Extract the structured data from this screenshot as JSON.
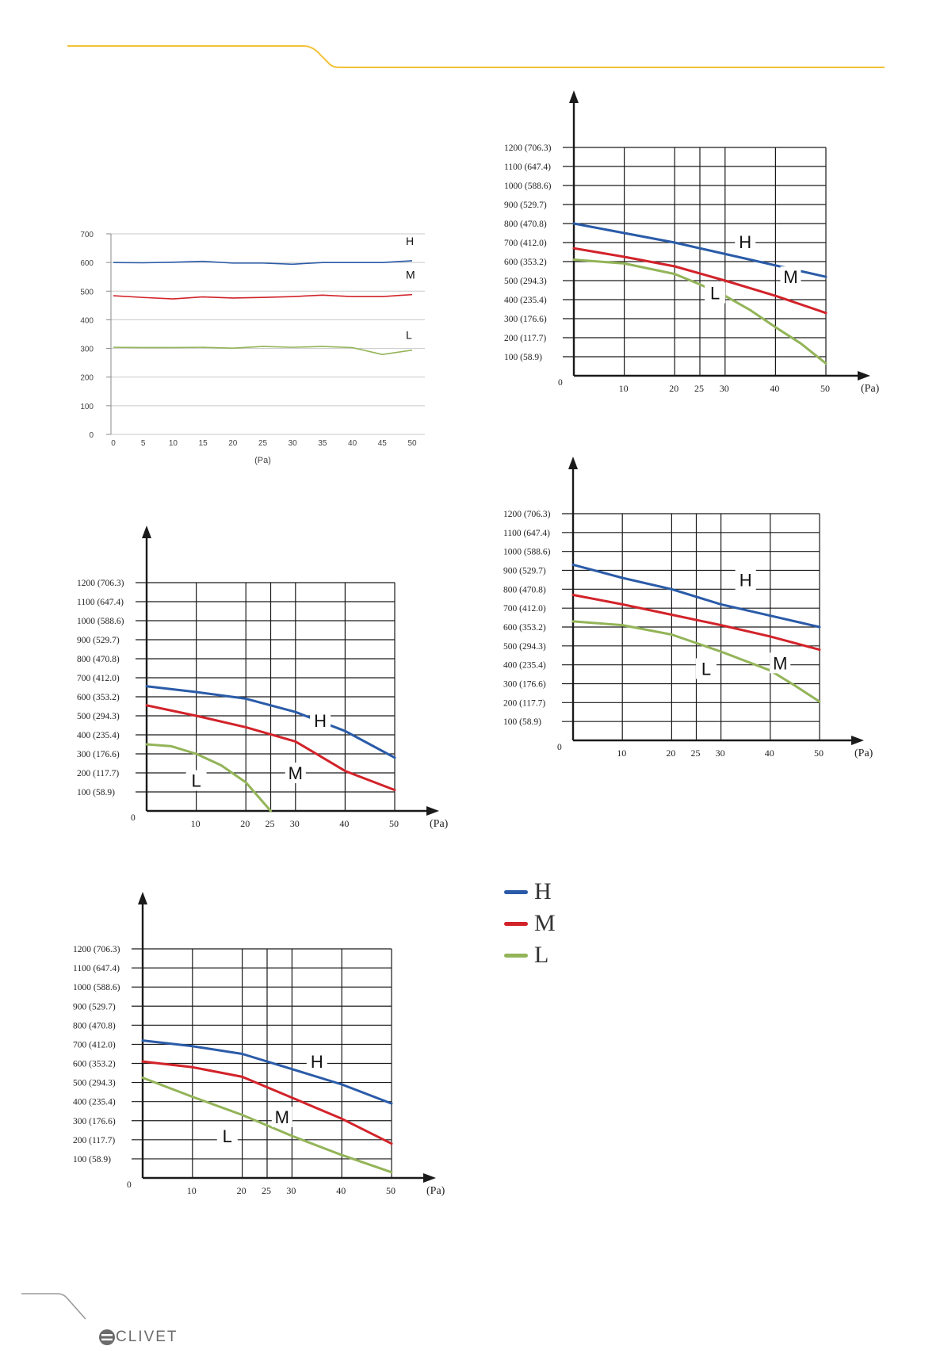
{
  "legend": [
    {
      "label": "H",
      "color": "#2a5ba8"
    },
    {
      "label": "M",
      "color": "#d2232a"
    },
    {
      "label": "L",
      "color": "#93b458"
    }
  ],
  "brand": {
    "text": "CLIVET",
    "icon": "clivet-logo-icon"
  },
  "colors": {
    "header_line": "#f2c237",
    "footer_line": "#9a9a9a",
    "axis": "#1a1a1a",
    "grid": "#1a1a1a",
    "chart1_grid": "#c8c8c8"
  },
  "chart_data": [
    {
      "type": "line",
      "xlabel": "(Pa)",
      "x": [
        0,
        5,
        10,
        15,
        20,
        25,
        30,
        35,
        40,
        45,
        50
      ],
      "ylim": [
        0,
        700
      ],
      "yticks": [
        0,
        100,
        200,
        300,
        400,
        500,
        600,
        700
      ],
      "grid": "horizontal",
      "series": [
        {
          "name": "H",
          "values": [
            600,
            599,
            601,
            604,
            598,
            598,
            594,
            600,
            600,
            600,
            606
          ]
        },
        {
          "name": "M",
          "values": [
            484,
            478,
            473,
            480,
            476,
            478,
            481,
            486,
            481,
            481,
            488
          ]
        },
        {
          "name": "L",
          "values": [
            304,
            303,
            303,
            304,
            301,
            307,
            304,
            307,
            303,
            279,
            294
          ]
        }
      ]
    },
    {
      "type": "line",
      "xlabel": "(Pa)",
      "xticks": [
        "10",
        "20",
        "25",
        "30",
        "40",
        "50"
      ],
      "origin_label": "0",
      "yticks": [
        "100 (58.9)",
        "200 (117.7)",
        "300 (176.6)",
        "400 (235.4)",
        "500 (294.3)",
        "600 (353.2)",
        "700 (412.0)",
        "800 (470.8)",
        "900 (529.7)",
        "1000 (588.6)",
        "1100 (647.4)",
        "1200 (706.3)"
      ],
      "ylim": [
        0,
        1200
      ],
      "series": [
        {
          "name": "H",
          "x": [
            0,
            10,
            20,
            30,
            40,
            50
          ],
          "values": [
            800,
            750,
            700,
            640,
            580,
            520
          ]
        },
        {
          "name": "M",
          "x": [
            0,
            10,
            20,
            30,
            40,
            50
          ],
          "values": [
            670,
            625,
            575,
            500,
            420,
            330
          ]
        },
        {
          "name": "L",
          "x": [
            0,
            10,
            20,
            25,
            30,
            35,
            40,
            45,
            50
          ],
          "values": [
            610,
            590,
            535,
            480,
            420,
            345,
            255,
            170,
            65
          ]
        }
      ]
    },
    {
      "type": "line",
      "xlabel": "(Pa)",
      "xticks": [
        "10",
        "20",
        "25",
        "30",
        "40",
        "50"
      ],
      "origin_label": "0",
      "yticks": [
        "100 (58.9)",
        "200 (117.7)",
        "300 (176.6)",
        "400 (235.4)",
        "500 (294.3)",
        "600 (353.2)",
        "700 (412.0)",
        "800 (470.8)",
        "900 (529.7)",
        "1000 (588.6)",
        "1100 (647.4)",
        "1200 (706.3)"
      ],
      "ylim": [
        0,
        1200
      ],
      "series": [
        {
          "name": "H",
          "x": [
            0,
            10,
            20,
            30,
            40,
            45,
            50
          ],
          "values": [
            655,
            625,
            590,
            520,
            420,
            350,
            280
          ]
        },
        {
          "name": "M",
          "x": [
            0,
            10,
            20,
            30,
            40,
            50
          ],
          "values": [
            555,
            500,
            440,
            365,
            210,
            110
          ]
        },
        {
          "name": "L",
          "x": [
            0,
            5,
            10,
            15,
            20,
            23,
            25
          ],
          "values": [
            350,
            340,
            300,
            240,
            150,
            60,
            0
          ]
        }
      ]
    },
    {
      "type": "line",
      "xlabel": "(Pa)",
      "xticks": [
        "10",
        "20",
        "25",
        "30",
        "40",
        "50"
      ],
      "origin_label": "0",
      "yticks": [
        "100 (58.9)",
        "200 (117.7)",
        "300 (176.6)",
        "400 (235.4)",
        "500 (294.3)",
        "600 (353.2)",
        "700 (412.0)",
        "800 (470.8)",
        "900 (529.7)",
        "1000 (588.6)",
        "1100 (647.4)",
        "1200 (706.3)"
      ],
      "ylim": [
        0,
        1200
      ],
      "series": [
        {
          "name": "H",
          "x": [
            0,
            10,
            20,
            30,
            40,
            50
          ],
          "values": [
            930,
            860,
            800,
            720,
            660,
            600
          ]
        },
        {
          "name": "M",
          "x": [
            0,
            10,
            20,
            30,
            40,
            50
          ],
          "values": [
            770,
            720,
            665,
            610,
            550,
            480
          ]
        },
        {
          "name": "L",
          "x": [
            0,
            10,
            20,
            30,
            40,
            45,
            50
          ],
          "values": [
            630,
            610,
            560,
            470,
            370,
            290,
            205
          ]
        }
      ]
    },
    {
      "type": "line",
      "xlabel": "(Pa)",
      "xticks": [
        "10",
        "20",
        "25",
        "30",
        "40",
        "50"
      ],
      "origin_label": "0",
      "yticks": [
        "100 (58.9)",
        "200 (117.7)",
        "300 (176.6)",
        "400 (235.4)",
        "500 (294.3)",
        "600 (353.2)",
        "700 (412.0)",
        "800 (470.8)",
        "900 (529.7)",
        "1000 (588.6)",
        "1100 (647.4)",
        "1200 (706.3)"
      ],
      "ylim": [
        0,
        1200
      ],
      "series": [
        {
          "name": "H",
          "x": [
            0,
            10,
            20,
            30,
            40,
            50
          ],
          "values": [
            720,
            690,
            650,
            570,
            490,
            390
          ]
        },
        {
          "name": "M",
          "x": [
            0,
            10,
            20,
            30,
            40,
            50
          ],
          "values": [
            610,
            580,
            530,
            420,
            310,
            180
          ]
        },
        {
          "name": "L",
          "x": [
            0,
            10,
            20,
            30,
            40,
            50
          ],
          "values": [
            525,
            425,
            330,
            220,
            120,
            30
          ]
        }
      ]
    }
  ]
}
